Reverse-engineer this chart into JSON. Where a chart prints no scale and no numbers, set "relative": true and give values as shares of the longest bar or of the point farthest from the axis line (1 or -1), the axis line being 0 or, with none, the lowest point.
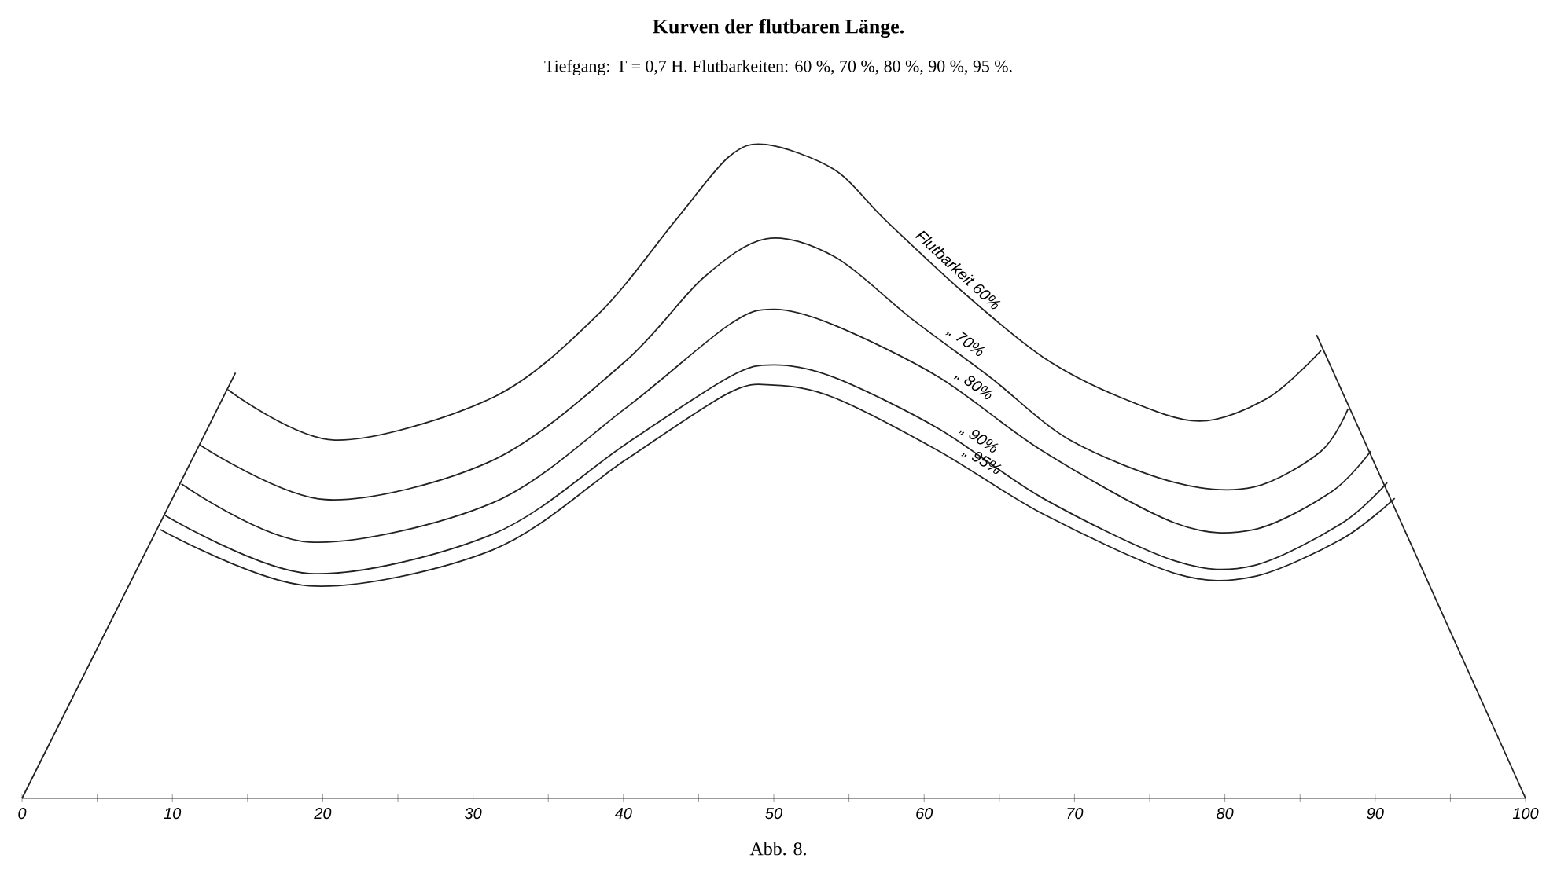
{
  "chart_data": {
    "type": "line",
    "title": "Kurven der flutbaren Länge.",
    "subtitle": "Tiefgang: T = 0,7 H. Flutbarkeiten: 60 %, 70 %, 80 %, 90 %, 95 %.",
    "annotations": [
      "Abb. 8."
    ],
    "relative": true,
    "xlim": [
      0,
      100
    ],
    "xticks": [
      0,
      {
        "value": 5,
        "label": null
      },
      10,
      {
        "value": 15,
        "label": null
      },
      20,
      {
        "value": 25,
        "label": null
      },
      30,
      {
        "value": 35,
        "label": null
      },
      40,
      {
        "value": 45,
        "label": null
      },
      50,
      {
        "value": 55,
        "label": null
      },
      60,
      {
        "value": 65,
        "label": null
      },
      70,
      {
        "value": 75,
        "label": null
      },
      80,
      {
        "value": 85,
        "label": null
      },
      90,
      {
        "value": 95,
        "label": null
      },
      100
    ],
    "marker": "none",
    "line_style": "solid",
    "series": [
      {
        "name": "Flutbarkeit 60%",
        "color": "#222222",
        "x": [
          13.7,
          20.8,
          31.3,
          38.3,
          43.5,
          47,
          49.5,
          54,
          57.4,
          62.7,
          67.9,
          73.1,
          78.3,
          82.9,
          86.4
        ],
        "values": [
          0.625,
          0.548,
          0.613,
          0.74,
          0.885,
          0.981,
          1.0,
          0.962,
          0.885,
          0.772,
          0.675,
          0.613,
          0.577,
          0.613,
          0.685
        ]
      },
      {
        "name": "„ 70%",
        "color": "#222222",
        "x": [
          11.8,
          20.2,
          31.3,
          40.1,
          45.3,
          49.5,
          54,
          59.2,
          64.4,
          69.7,
          76.7,
          81.9,
          86.4,
          88.2
        ],
        "values": [
          0.541,
          0.457,
          0.517,
          0.668,
          0.796,
          0.856,
          0.829,
          0.733,
          0.644,
          0.548,
          0.483,
          0.476,
          0.531,
          0.596
        ]
      },
      {
        "name": "„ 80%",
        "color": "#222222",
        "x": [
          10.6,
          19.1,
          31.3,
          40.1,
          47,
          50,
          54,
          61,
          67.9,
          76.7,
          81.9,
          87.1,
          89.7
        ],
        "values": [
          0.481,
          0.392,
          0.452,
          0.596,
          0.724,
          0.748,
          0.724,
          0.644,
          0.531,
          0.421,
          0.411,
          0.469,
          0.531
        ]
      },
      {
        "name": "„ 90%",
        "color": "#222222",
        "x": [
          9.5,
          19.1,
          31.3,
          40.1,
          47,
          50,
          54,
          61,
          67.9,
          76.7,
          81.9,
          87.8,
          90.8
        ],
        "values": [
          0.433,
          0.344,
          0.404,
          0.541,
          0.644,
          0.663,
          0.644,
          0.565,
          0.459,
          0.363,
          0.356,
          0.421,
          0.483
        ]
      },
      {
        "name": "„ 95%",
        "color": "#222222",
        "x": [
          9.2,
          19.1,
          31.3,
          40.1,
          47,
          50,
          54,
          61,
          67.9,
          76.7,
          81.9,
          87.8,
          91.3
        ],
        "values": [
          0.411,
          0.325,
          0.38,
          0.517,
          0.62,
          0.632,
          0.613,
          0.531,
          0.435,
          0.344,
          0.339,
          0.397,
          0.459
        ]
      },
      {
        "color": "#222222",
        "x": [
          0,
          14.2
        ],
        "values": [
          0,
          0.651
        ]
      },
      {
        "color": "#222222",
        "x": [
          100,
          86.1
        ],
        "values": [
          0,
          0.709
        ]
      }
    ]
  }
}
